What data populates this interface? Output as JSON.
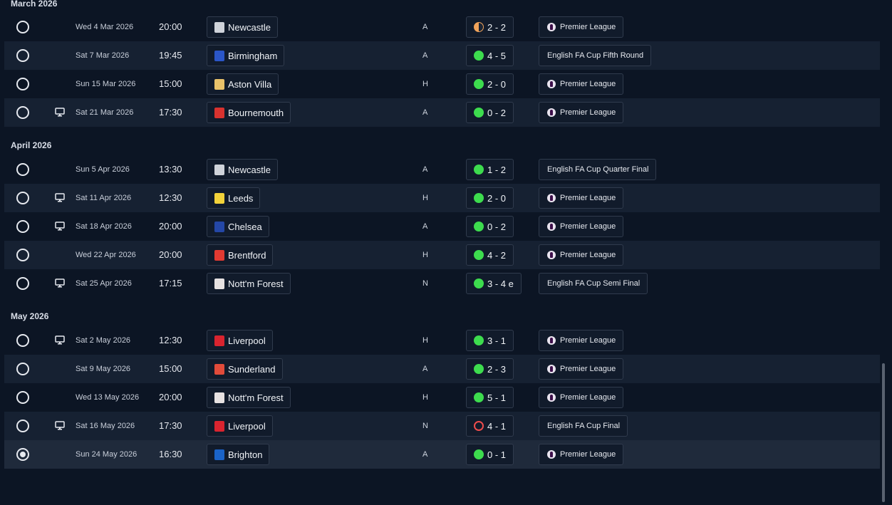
{
  "months": [
    {
      "label": "March 2026",
      "matches": [
        {
          "date": "Wed 4 Mar 2026",
          "time": "20:00",
          "opponent": "Newcastle",
          "crest": "newcastle-crest",
          "venue": "A",
          "result": "2 - 2",
          "outcome": "draw",
          "competition": "Premier League",
          "comp_icon": "premier-league-icon",
          "tv": false
        },
        {
          "date": "Sat 7 Mar 2026",
          "time": "19:45",
          "opponent": "Birmingham",
          "crest": "birmingham-crest",
          "venue": "A",
          "result": "4 - 5",
          "outcome": "win",
          "competition": "English FA Cup Fifth Round",
          "comp_icon": "",
          "tv": false
        },
        {
          "date": "Sun 15 Mar 2026",
          "time": "15:00",
          "opponent": "Aston Villa",
          "crest": "aston-villa-crest",
          "venue": "H",
          "result": "2 - 0",
          "outcome": "win",
          "competition": "Premier League",
          "comp_icon": "premier-league-icon",
          "tv": false
        },
        {
          "date": "Sat 21 Mar 2026",
          "time": "17:30",
          "opponent": "Bournemouth",
          "crest": "bournemouth-crest",
          "venue": "A",
          "result": "0 - 2",
          "outcome": "win",
          "competition": "Premier League",
          "comp_icon": "premier-league-icon",
          "tv": true
        }
      ]
    },
    {
      "label": "April 2026",
      "matches": [
        {
          "date": "Sun 5 Apr 2026",
          "time": "13:30",
          "opponent": "Newcastle",
          "crest": "newcastle-crest",
          "venue": "A",
          "result": "1 - 2",
          "outcome": "win",
          "competition": "English FA Cup Quarter Final",
          "comp_icon": "",
          "tv": false
        },
        {
          "date": "Sat 11 Apr 2026",
          "time": "12:30",
          "opponent": "Leeds",
          "crest": "leeds-crest",
          "venue": "H",
          "result": "2 - 0",
          "outcome": "win",
          "competition": "Premier League",
          "comp_icon": "premier-league-icon",
          "tv": true
        },
        {
          "date": "Sat 18 Apr 2026",
          "time": "20:00",
          "opponent": "Chelsea",
          "crest": "chelsea-crest",
          "venue": "A",
          "result": "0 - 2",
          "outcome": "win",
          "competition": "Premier League",
          "comp_icon": "premier-league-icon",
          "tv": true
        },
        {
          "date": "Wed 22 Apr 2026",
          "time": "20:00",
          "opponent": "Brentford",
          "crest": "brentford-crest",
          "venue": "H",
          "result": "4 - 2",
          "outcome": "win",
          "competition": "Premier League",
          "comp_icon": "premier-league-icon",
          "tv": false
        },
        {
          "date": "Sat 25 Apr 2026",
          "time": "17:15",
          "opponent": "Nott'm Forest",
          "crest": "nottm-forest-crest",
          "venue": "N",
          "result": "3 - 4 e",
          "outcome": "win",
          "competition": "English FA Cup Semi Final",
          "comp_icon": "",
          "tv": true
        }
      ]
    },
    {
      "label": "May 2026",
      "matches": [
        {
          "date": "Sat 2 May 2026",
          "time": "12:30",
          "opponent": "Liverpool",
          "crest": "liverpool-crest",
          "venue": "H",
          "result": "3 - 1",
          "outcome": "win",
          "competition": "Premier League",
          "comp_icon": "premier-league-icon",
          "tv": true
        },
        {
          "date": "Sat 9 May 2026",
          "time": "15:00",
          "opponent": "Sunderland",
          "crest": "sunderland-crest",
          "venue": "A",
          "result": "2 - 3",
          "outcome": "win",
          "competition": "Premier League",
          "comp_icon": "premier-league-icon",
          "tv": false
        },
        {
          "date": "Wed 13 May 2026",
          "time": "20:00",
          "opponent": "Nott'm Forest",
          "crest": "nottm-forest-crest",
          "venue": "H",
          "result": "5 - 1",
          "outcome": "win",
          "competition": "Premier League",
          "comp_icon": "premier-league-icon",
          "tv": false
        },
        {
          "date": "Sat 16 May 2026",
          "time": "17:30",
          "opponent": "Liverpool",
          "crest": "liverpool-crest",
          "venue": "N",
          "result": "4 - 1",
          "outcome": "loss",
          "competition": "English FA Cup Final",
          "comp_icon": "",
          "tv": true
        },
        {
          "date": "Sun 24 May 2026",
          "time": "16:30",
          "opponent": "Brighton",
          "crest": "brighton-crest",
          "venue": "A",
          "result": "0 - 1",
          "outcome": "win",
          "competition": "Premier League",
          "comp_icon": "premier-league-icon",
          "tv": false,
          "selected": true
        }
      ]
    }
  ],
  "crest_colors": {
    "newcastle-crest": "#cfd3da",
    "birmingham-crest": "#2b56c8",
    "aston-villa-crest": "#e9c26a",
    "bournemouth-crest": "#d8322f",
    "leeds-crest": "#f2d23a",
    "chelsea-crest": "#2447a6",
    "brentford-crest": "#e23a32",
    "nottm-forest-crest": "#e7e2e2",
    "liverpool-crest": "#d9242f",
    "sunderland-crest": "#e14b3a",
    "brighton-crest": "#1a63c8"
  }
}
